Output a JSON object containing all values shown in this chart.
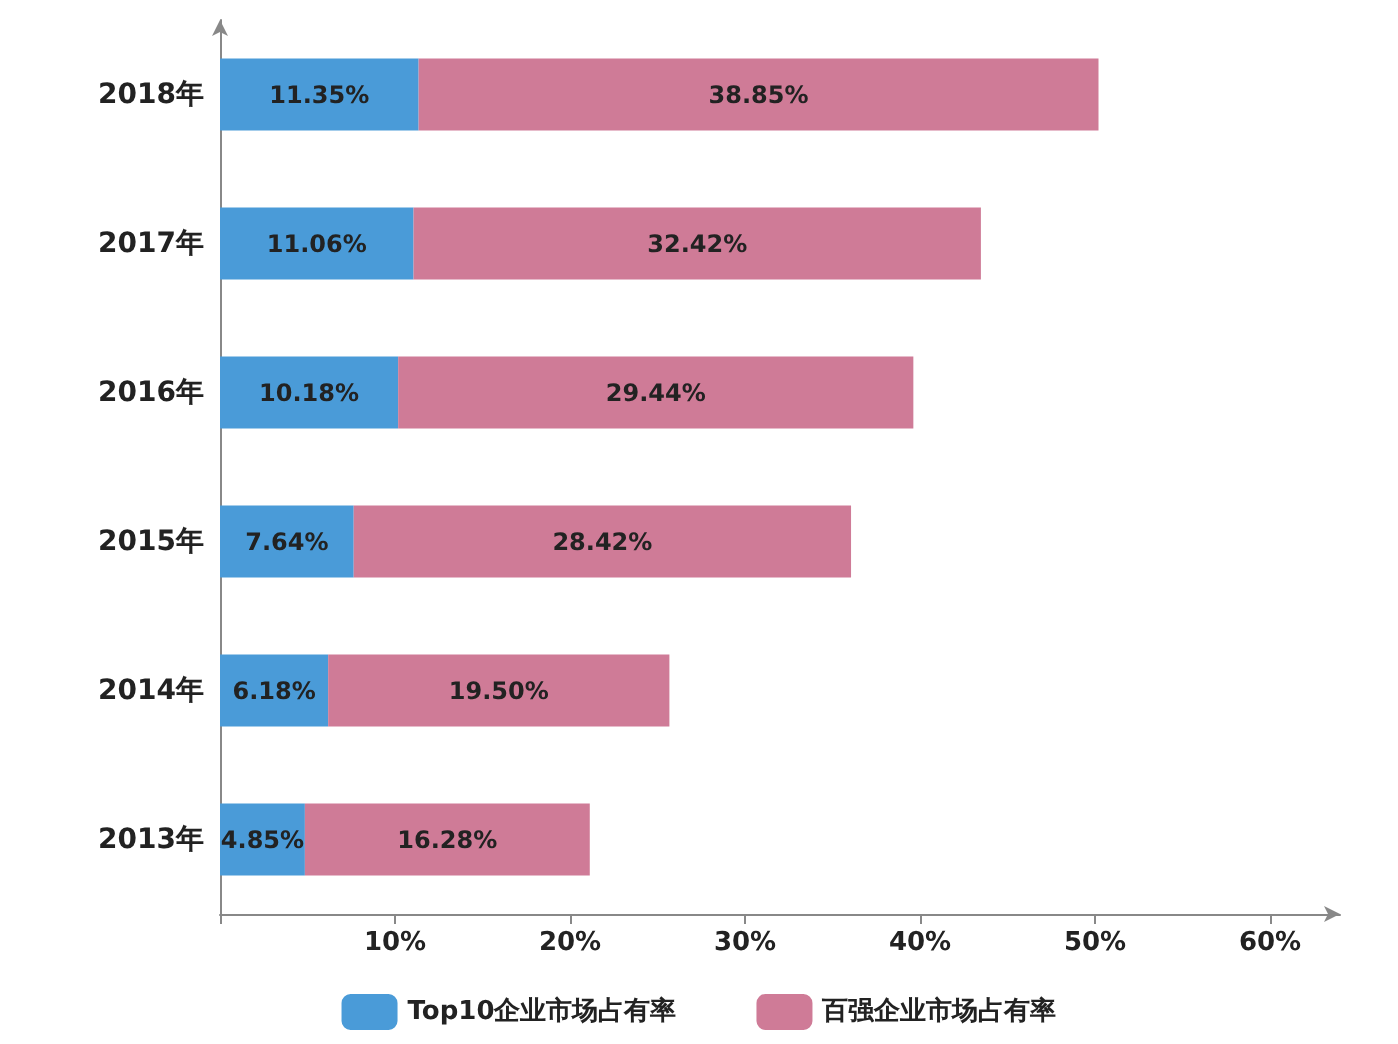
{
  "chart_data": {
    "type": "bar",
    "orientation": "horizontal",
    "stacked": true,
    "categories": [
      "2018年",
      "2017年",
      "2016年",
      "2015年",
      "2014年",
      "2013年"
    ],
    "series": [
      {
        "name": "Top10企业市场占有率",
        "color": "#4a9bd8",
        "values": [
          11.35,
          11.06,
          10.18,
          7.64,
          6.18,
          4.85
        ],
        "value_labels": [
          "11.35%",
          "11.06%",
          "10.18%",
          "7.64%",
          "6.18%",
          "4.85%"
        ]
      },
      {
        "name": "百强企业市场占有率",
        "color": "#cf7b97",
        "values": [
          38.85,
          32.42,
          29.44,
          28.42,
          19.5,
          16.28
        ],
        "value_labels": [
          "38.85%",
          "32.42%",
          "29.44%",
          "28.42%",
          "19.50%",
          "16.28%"
        ]
      }
    ],
    "xlim": [
      0,
      64
    ],
    "xticks": [
      {
        "value": 0,
        "label": null
      },
      {
        "value": 10,
        "label": "10%"
      },
      {
        "value": 20,
        "label": "20%"
      },
      {
        "value": 30,
        "label": "30%"
      },
      {
        "value": 40,
        "label": "40%"
      },
      {
        "value": 50,
        "label": "50%"
      },
      {
        "value": 60,
        "label": "60%"
      }
    ],
    "grid": false,
    "legend": "bottom"
  }
}
